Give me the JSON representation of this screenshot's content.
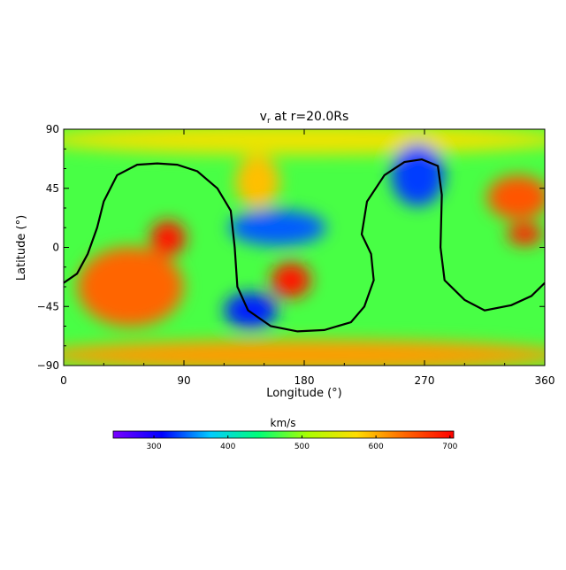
{
  "chart_data": {
    "type": "heatmap",
    "title": "v",
    "title_sub": "r",
    "title_suffix": " at r=20.0Rs",
    "xlabel": "Longitude (°)",
    "ylabel": "Latitude (°)",
    "xlim": [
      0,
      360
    ],
    "ylim": [
      -90,
      90
    ],
    "x_ticks": [
      0,
      90,
      180,
      270,
      360
    ],
    "y_ticks": [
      90,
      45,
      0,
      -45,
      -90
    ],
    "x_tick_labels": [
      "0",
      "90",
      "180",
      "270",
      "360"
    ],
    "y_tick_labels": [
      "90",
      "45",
      "0",
      "−45",
      "−90"
    ],
    "colorbar": {
      "label": "km/s",
      "range": [
        245,
        705
      ],
      "ticks": [
        300,
        400,
        500,
        600,
        700
      ],
      "tick_labels": [
        "300",
        "400",
        "500",
        "600",
        "700"
      ],
      "colormap": [
        "#7a00ff",
        "#0000ff",
        "#00ccff",
        "#00ff77",
        "#aaff00",
        "#ffdd00",
        "#ff6600",
        "#ff0000"
      ]
    },
    "field_features": [
      {
        "lon": 180,
        "lat": 82,
        "speed": 560,
        "note": "north polar band"
      },
      {
        "lon": 180,
        "lat": -82,
        "speed": 610,
        "note": "south polar band"
      },
      {
        "lon": 50,
        "lat": -30,
        "speed": 640,
        "note": "fast wind region"
      },
      {
        "lon": 78,
        "lat": 7,
        "speed": 690,
        "note": "fast wind peak"
      },
      {
        "lon": 170,
        "lat": -25,
        "speed": 690,
        "note": "fast wind peak"
      },
      {
        "lon": 340,
        "lat": 38,
        "speed": 650,
        "note": "fast wind region"
      },
      {
        "lon": 345,
        "lat": 10,
        "speed": 680,
        "note": "fast wind peak"
      },
      {
        "lon": 145,
        "lat": 50,
        "speed": 590,
        "note": "fast wind region"
      },
      {
        "lon": 140,
        "lat": -48,
        "speed": 320,
        "note": "slow wind region"
      },
      {
        "lon": 265,
        "lat": 55,
        "speed": 330,
        "note": "slow wind region"
      },
      {
        "lon": 160,
        "lat": 15,
        "speed": 340,
        "note": "slow wind region"
      }
    ],
    "neutral_line": [
      [
        0,
        -27
      ],
      [
        10,
        -20
      ],
      [
        18,
        -5
      ],
      [
        25,
        15
      ],
      [
        30,
        35
      ],
      [
        40,
        55
      ],
      [
        55,
        63
      ],
      [
        70,
        64
      ],
      [
        85,
        63
      ],
      [
        100,
        58
      ],
      [
        115,
        45
      ],
      [
        125,
        28
      ],
      [
        128,
        0
      ],
      [
        130,
        -30
      ],
      [
        138,
        -48
      ],
      [
        155,
        -60
      ],
      [
        175,
        -64
      ],
      [
        195,
        -63
      ],
      [
        215,
        -57
      ],
      [
        225,
        -45
      ],
      [
        232,
        -25
      ],
      [
        230,
        -5
      ],
      [
        223,
        10
      ],
      [
        227,
        35
      ],
      [
        240,
        55
      ],
      [
        255,
        65
      ],
      [
        268,
        67
      ],
      [
        280,
        62
      ],
      [
        283,
        40
      ],
      [
        282,
        0
      ],
      [
        285,
        -25
      ],
      [
        300,
        -40
      ],
      [
        315,
        -48
      ],
      [
        335,
        -44
      ],
      [
        350,
        -37
      ],
      [
        360,
        -27
      ]
    ]
  }
}
